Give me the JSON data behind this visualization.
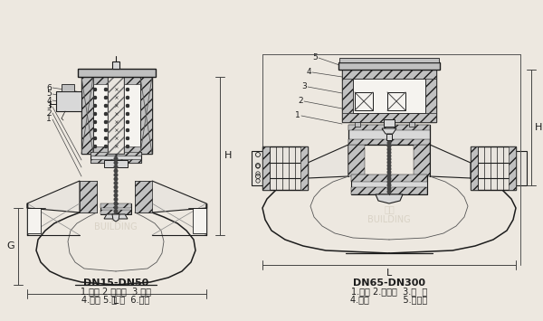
{
  "bg_color": "#ede8e0",
  "line_color": "#1c1c1c",
  "left_label": "DN15-DN50",
  "left_parts1": "1.阀体 2.阀塞组  3.弹簧",
  "left_parts2": "4.阀盖 5.铁 芯  6.线圈",
  "right_label": "DN65-DN300",
  "right_parts1": "1.阀体 2.阀塞组  3.弹  簧",
  "right_parts2": "4.阀盖            5.电磁铁",
  "watermark1": "诶工\nBUILDING",
  "watermark2": "诶工\nBUILDING"
}
